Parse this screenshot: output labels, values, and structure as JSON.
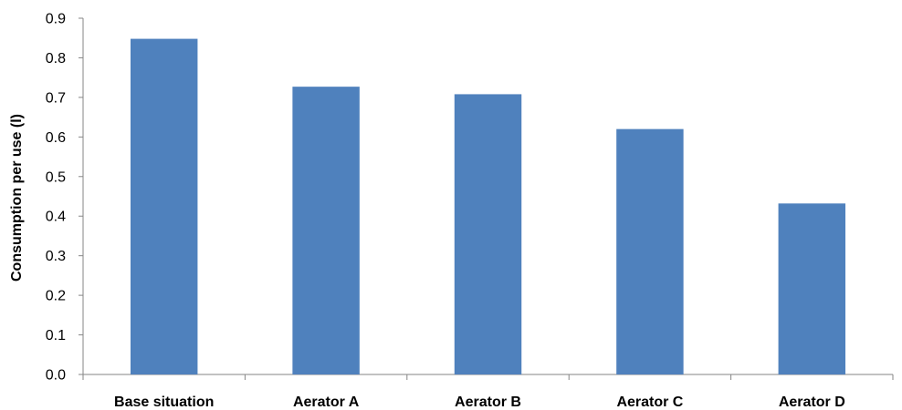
{
  "chart_data": {
    "type": "bar",
    "title": "",
    "xlabel": "",
    "ylabel": "Consumption per use (l)",
    "categories": [
      "Base situation",
      "Aerator A",
      "Aerator B",
      "Aerator C",
      "Aerator D"
    ],
    "values": [
      0.848,
      0.727,
      0.708,
      0.62,
      0.432
    ],
    "ylim": [
      0,
      0.9
    ],
    "yticks": [
      "0.0",
      "0.1",
      "0.2",
      "0.3",
      "0.4",
      "0.5",
      "0.6",
      "0.7",
      "0.8",
      "0.9"
    ],
    "grid": false,
    "legend": "none",
    "bar_color": "#4F81BD",
    "axis_color": "#868686"
  }
}
